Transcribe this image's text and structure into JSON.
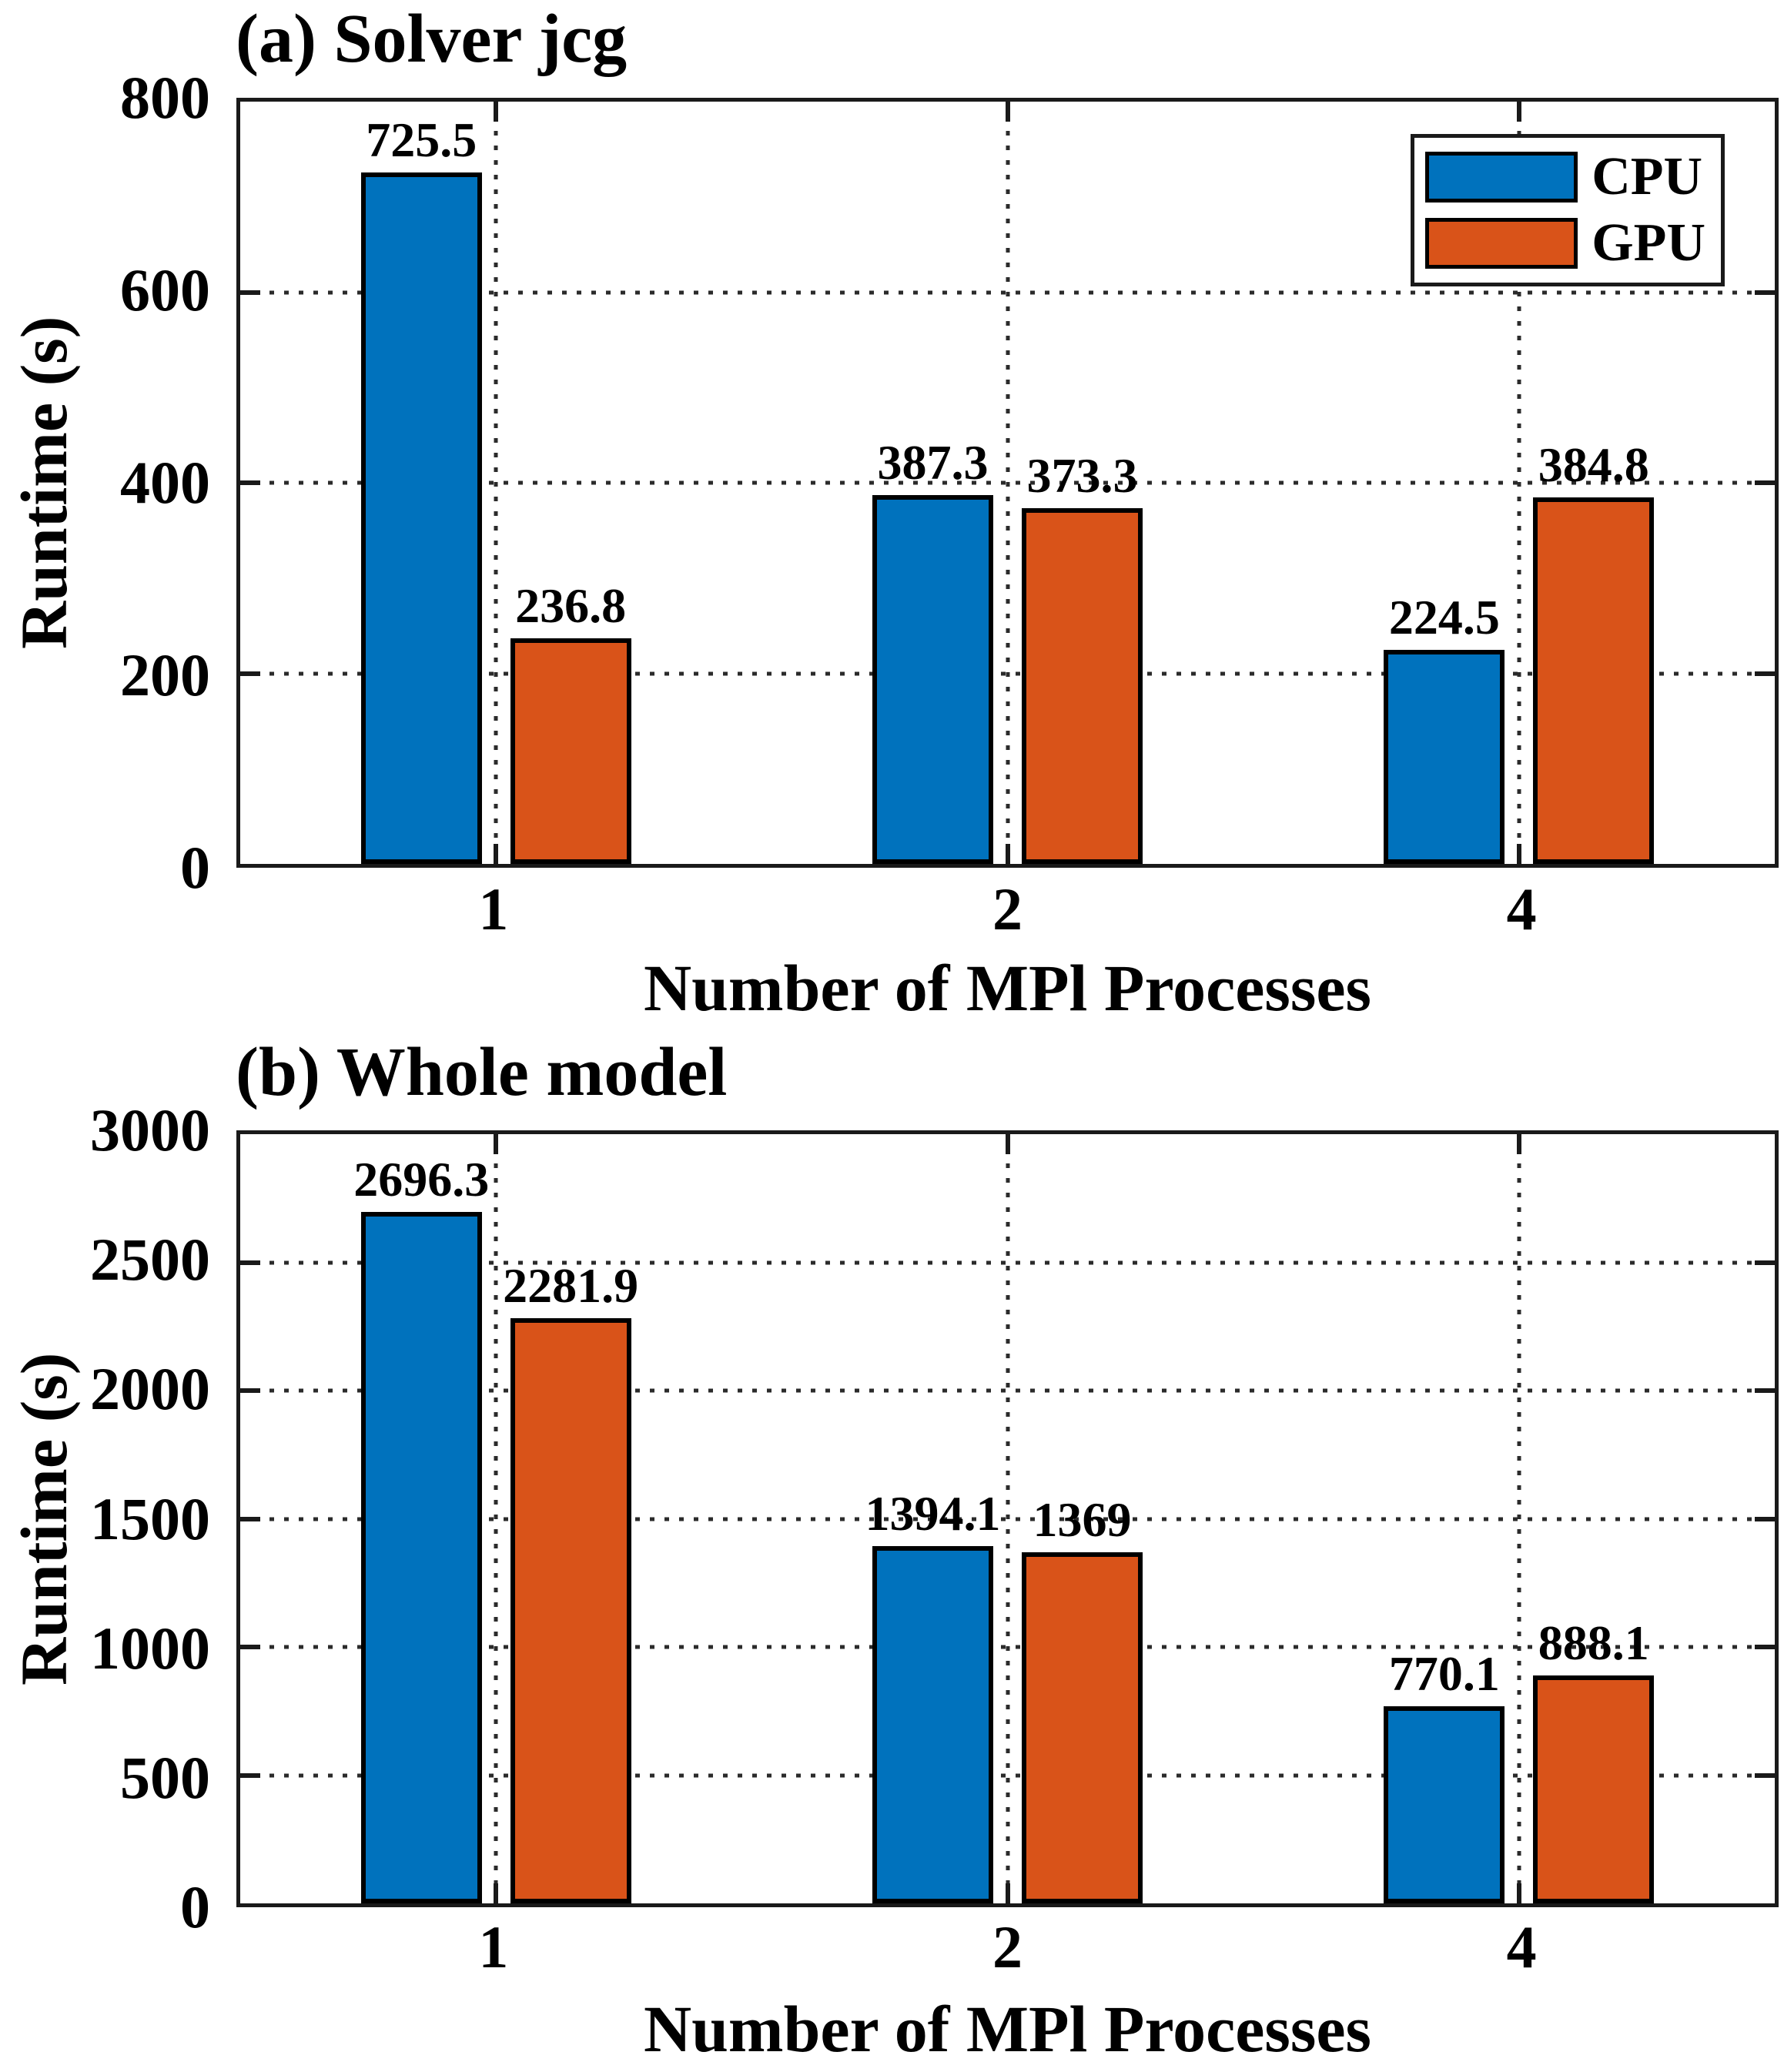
{
  "colors": {
    "cpu": "#0072BD",
    "gpu": "#D95319",
    "axis": "#1A1A1A",
    "grid": "#2B2B2B",
    "text": "#000000",
    "background": "#FFFFFF"
  },
  "legend": {
    "items": [
      {
        "label": "CPU",
        "color": "#0072BD"
      },
      {
        "label": "GPU",
        "color": "#D95319"
      }
    ],
    "position": "top-right"
  },
  "chart_data": [
    {
      "type": "bar",
      "panel": "a",
      "title": "(a) Solver jcg",
      "xlabel": "Number of MPl Processes",
      "ylabel": "Runtime (s)",
      "categories": [
        "1",
        "2",
        "4"
      ],
      "series": [
        {
          "name": "CPU",
          "color": "#0072BD",
          "values": [
            725.5,
            387.3,
            224.5
          ],
          "labels": [
            "725.5",
            "387.3",
            "224.5"
          ]
        },
        {
          "name": "GPU",
          "color": "#D95319",
          "values": [
            236.8,
            373.3,
            384.8
          ],
          "labels": [
            "236.8",
            "373.3",
            "384.8"
          ]
        }
      ],
      "ylim": [
        0,
        800
      ],
      "yticks": [
        0,
        200,
        400,
        600,
        800
      ],
      "grid": true,
      "grid_style": "dotted",
      "legend": true,
      "bar_value_labels": true
    },
    {
      "type": "bar",
      "panel": "b",
      "title": "(b) Whole model",
      "xlabel": "Number of MPl Processes",
      "ylabel": "Runtime (s)",
      "categories": [
        "1",
        "2",
        "4"
      ],
      "series": [
        {
          "name": "CPU",
          "color": "#0072BD",
          "values": [
            2696.3,
            1394.1,
            770.1
          ],
          "labels": [
            "2696.3",
            "1394.1",
            "770.1"
          ]
        },
        {
          "name": "GPU",
          "color": "#D95319",
          "values": [
            2281.9,
            1369,
            888.1
          ],
          "labels": [
            "2281.9",
            "1369",
            "888.1"
          ]
        }
      ],
      "ylim": [
        0,
        3000
      ],
      "yticks": [
        0,
        500,
        1000,
        1500,
        2000,
        2500,
        3000
      ],
      "grid": true,
      "grid_style": "dotted",
      "legend": false,
      "bar_value_labels": true
    }
  ]
}
